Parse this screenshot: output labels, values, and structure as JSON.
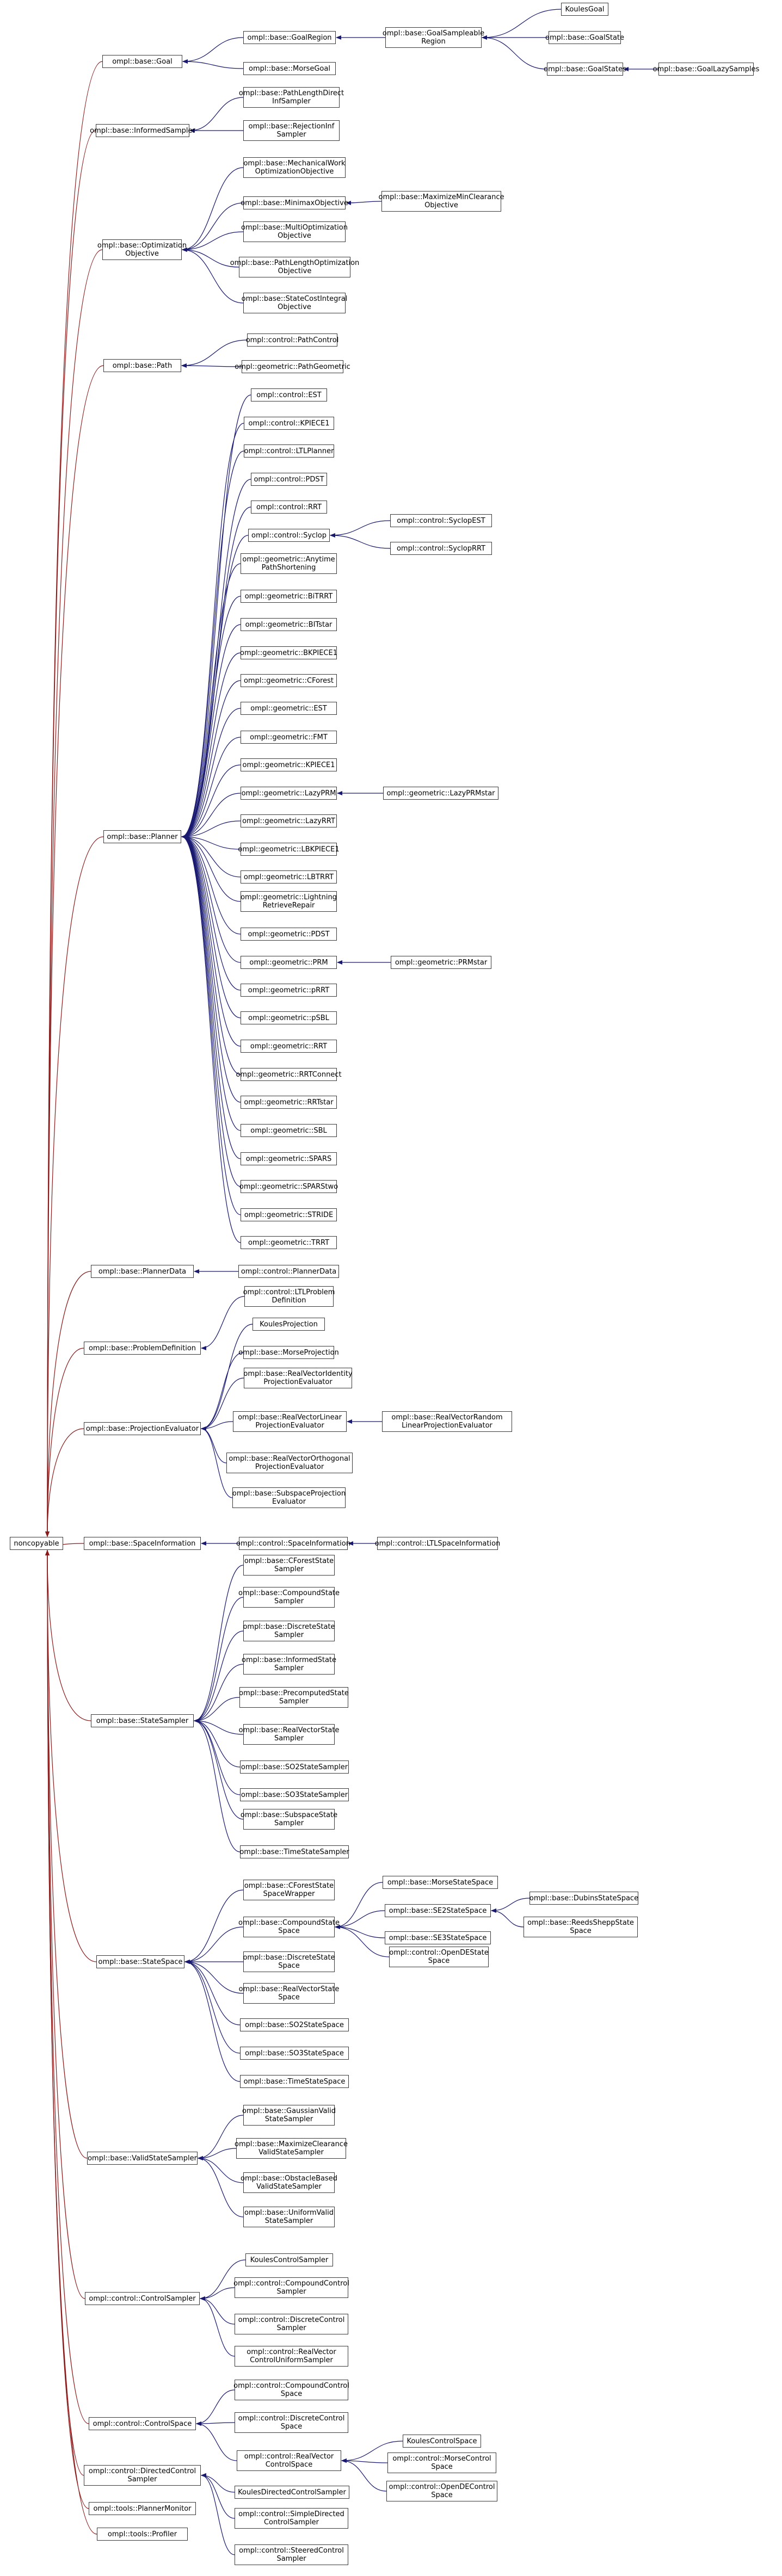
{
  "colors": {
    "inherit_edge": "#191970",
    "noncopyable_edge": "#8b1a1a",
    "node_border": "#3a3a3a"
  },
  "nodes": {
    "noncopyable": "noncopyable",
    "goal": "ompl::base::Goal",
    "goal_region": "ompl::base::GoalRegion",
    "goal_sampleable": "ompl::base::GoalSampleable\nRegion",
    "koules_goal": "KoulesGoal",
    "goal_state": "ompl::base::GoalState",
    "goal_states": "ompl::base::GoalStates",
    "goal_lazy": "ompl::base::GoalLazySamples",
    "morse_goal": "ompl::base::MorseGoal",
    "informed_sampler": "ompl::base::InformedSampler",
    "path_length_direct": "ompl::base::PathLengthDirect\nInfSampler",
    "rejection_inf": "ompl::base::RejectionInf\nSampler",
    "opt_objective": "ompl::base::Optimization\nObjective",
    "mech_work": "ompl::base::MechanicalWork\nOptimizationObjective",
    "minimax": "ompl::base::MinimaxObjective",
    "max_min_clearance": "ompl::base::MaximizeMinClearance\nObjective",
    "multi_opt": "ompl::base::MultiOptimization\nObjective",
    "path_length_opt": "ompl::base::PathLengthOptimization\nObjective",
    "state_cost_integral": "ompl::base::StateCostIntegral\nObjective",
    "path": "ompl::base::Path",
    "path_control": "ompl::control::PathControl",
    "path_geometric": "ompl::geometric::PathGeometric",
    "planner": "ompl::base::Planner",
    "c_est": "ompl::control::EST",
    "c_kpiece1": "ompl::control::KPIECE1",
    "c_ltl_planner": "ompl::control::LTLPlanner",
    "c_pdst": "ompl::control::PDST",
    "c_rrt": "ompl::control::RRT",
    "c_syclop": "ompl::control::Syclop",
    "c_syclop_est": "ompl::control::SyclopEST",
    "c_syclop_rrt": "ompl::control::SyclopRRT",
    "g_anytime": "ompl::geometric::Anytime\nPathShortening",
    "g_bitrrt": "ompl::geometric::BiTRRT",
    "g_bitstar": "ompl::geometric::BITstar",
    "g_bkpiece1": "ompl::geometric::BKPIECE1",
    "g_cforest": "ompl::geometric::CForest",
    "g_est": "ompl::geometric::EST",
    "g_fmt": "ompl::geometric::FMT",
    "g_kpiece1": "ompl::geometric::KPIECE1",
    "g_lazyprm": "ompl::geometric::LazyPRM",
    "g_lazyprmstar": "ompl::geometric::LazyPRMstar",
    "g_lazyrrt": "ompl::geometric::LazyRRT",
    "g_lbkpiece1": "ompl::geometric::LBKPIECE1",
    "g_lbtrrt": "ompl::geometric::LBTRRT",
    "g_lightning": "ompl::geometric::Lightning\nRetrieveRepair",
    "g_pdst": "ompl::geometric::PDST",
    "g_prm": "ompl::geometric::PRM",
    "g_prmstar": "ompl::geometric::PRMstar",
    "g_prrt": "ompl::geometric::pRRT",
    "g_psbl": "ompl::geometric::pSBL",
    "g_rrt": "ompl::geometric::RRT",
    "g_rrtconnect": "ompl::geometric::RRTConnect",
    "g_rrtstar": "ompl::geometric::RRTstar",
    "g_sbl": "ompl::geometric::SBL",
    "g_spars": "ompl::geometric::SPARS",
    "g_spars2": "ompl::geometric::SPARStwo",
    "g_stride": "ompl::geometric::STRIDE",
    "g_trrt": "ompl::geometric::TRRT",
    "planner_data": "ompl::base::PlannerData",
    "c_planner_data": "ompl::control::PlannerData",
    "problem_def": "ompl::base::ProblemDefinition",
    "c_ltl_problem": "ompl::control::LTLProblem\nDefinition",
    "proj_eval": "ompl::base::ProjectionEvaluator",
    "koules_proj": "KoulesProjection",
    "morse_proj": "ompl::base::MorseProjection",
    "rv_identity": "ompl::base::RealVectorIdentity\nProjectionEvaluator",
    "rv_linear": "ompl::base::RealVectorLinear\nProjectionEvaluator",
    "rv_random_linear": "ompl::base::RealVectorRandom\nLinearProjectionEvaluator",
    "rv_orthogonal": "ompl::base::RealVectorOrthogonal\nProjectionEvaluator",
    "subspace_proj": "ompl::base::SubspaceProjection\nEvaluator",
    "space_info": "ompl::base::SpaceInformation",
    "c_space_info": "ompl::control::SpaceInformation",
    "c_ltl_space_info": "ompl::control::LTLSpaceInformation",
    "state_sampler": "ompl::base::StateSampler",
    "cforest_ss": "ompl::base::CForestState\nSampler",
    "compound_ss": "ompl::base::CompoundState\nSampler",
    "discrete_ss": "ompl::base::DiscreteState\nSampler",
    "informed_ss": "ompl::base::InformedState\nSampler",
    "precomputed_ss": "ompl::base::PrecomputedState\nSampler",
    "realvector_ss": "ompl::base::RealVectorState\nSampler",
    "so2_ss": "ompl::base::SO2StateSampler",
    "so3_ss": "ompl::base::SO3StateSampler",
    "subspace_ss": "ompl::base::SubspaceState\nSampler",
    "time_ss": "ompl::base::TimeStateSampler",
    "state_space": "ompl::base::StateSpace",
    "cforest_ssw": "ompl::base::CForestState\nSpaceWrapper",
    "compound_space": "ompl::base::CompoundState\nSpace",
    "morse_space": "ompl::base::MorseStateSpace",
    "se2_space": "ompl::base::SE2StateSpace",
    "dubins_space": "ompl::base::DubinsStateSpace",
    "reeds_space": "ompl::base::ReedsSheppState\nSpace",
    "se3_space": "ompl::base::SE3StateSpace",
    "c_ode_space": "ompl::control::OpenDEState\nSpace",
    "discrete_space": "ompl::base::DiscreteState\nSpace",
    "realvector_space": "ompl::base::RealVectorState\nSpace",
    "so2_space": "ompl::base::SO2StateSpace",
    "so3_space": "ompl::base::SO3StateSpace",
    "time_space": "ompl::base::TimeStateSpace",
    "valid_sampler": "ompl::base::ValidStateSampler",
    "gaussian_vs": "ompl::base::GaussianValid\nStateSampler",
    "max_clear_vs": "ompl::base::MaximizeClearance\nValidStateSampler",
    "obstacle_vs": "ompl::base::ObstacleBased\nValidStateSampler",
    "uniform_vs": "ompl::base::UniformValid\nStateSampler",
    "control_sampler": "ompl::control::ControlSampler",
    "koules_cs": "KoulesControlSampler",
    "compound_cs": "ompl::control::CompoundControl\nSampler",
    "discrete_cs": "ompl::control::DiscreteControl\nSampler",
    "rv_uniform_cs": "ompl::control::RealVector\nControlUniformSampler",
    "control_space": "ompl::control::ControlSpace",
    "compound_ctl_space": "ompl::control::CompoundControl\nSpace",
    "discrete_ctl_space": "ompl::control::DiscreteControl\nSpace",
    "rv_ctl_space": "ompl::control::RealVector\nControlSpace",
    "koules_ctl_space": "KoulesControlSpace",
    "morse_ctl_space": "ompl::control::MorseControl\nSpace",
    "ode_ctl_space": "ompl::control::OpenDEControl\nSpace",
    "directed_cs": "ompl::control::DirectedControl\nSampler",
    "koules_dcs": "KoulesDirectedControlSampler",
    "simple_dcs": "ompl::control::SimpleDirected\nControlSampler",
    "steered_cs": "ompl::control::SteeredControl\nSampler",
    "planner_monitor": "ompl::tools::PlannerMonitor",
    "profiler": "ompl::tools::Profiler"
  }
}
